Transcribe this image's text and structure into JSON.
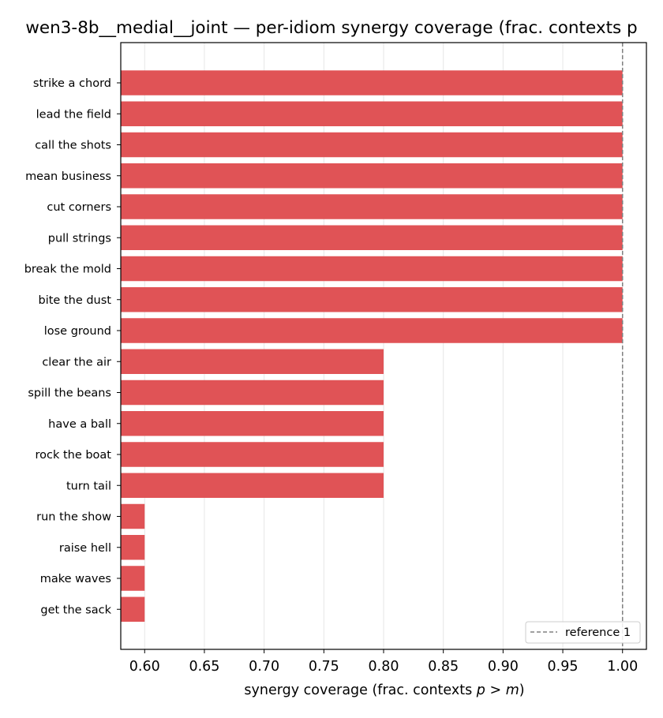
{
  "chart_data": {
    "type": "bar",
    "orientation": "horizontal",
    "title": "wen3-8b__medial__joint — per-idiom synergy coverage  (frac. contexts p",
    "xlabel": {
      "prefix": "synergy coverage  (frac. contexts ",
      "p": "p",
      "gt": " > ",
      "m": "m",
      "suffix": ")"
    },
    "categories": [
      "strike a chord",
      "lead the field",
      "call the shots",
      "mean business",
      "cut corners",
      "pull strings",
      "break the mold",
      "bite the dust",
      "lose ground",
      "clear the air",
      "spill the beans",
      "have a ball",
      "rock the boat",
      "turn tail",
      "run the show",
      "raise hell",
      "make waves",
      "get the sack"
    ],
    "values": [
      1.0,
      1.0,
      1.0,
      1.0,
      1.0,
      1.0,
      1.0,
      1.0,
      1.0,
      0.8,
      0.8,
      0.8,
      0.8,
      0.8,
      0.6,
      0.6,
      0.6,
      0.6
    ],
    "xlim": [
      0.58,
      1.02
    ],
    "xticks": [
      "0.60",
      "0.65",
      "0.70",
      "0.75",
      "0.80",
      "0.85",
      "0.90",
      "0.95",
      "1.00"
    ],
    "xtick_values": [
      0.6,
      0.65,
      0.7,
      0.75,
      0.8,
      0.85,
      0.9,
      0.95,
      1.0
    ],
    "reference_line": {
      "value": 1.0,
      "label": "reference 1"
    },
    "grid": "vertical",
    "legend_position": "lower-right",
    "bar_color": "#e05356",
    "reference_color": "#808080"
  }
}
